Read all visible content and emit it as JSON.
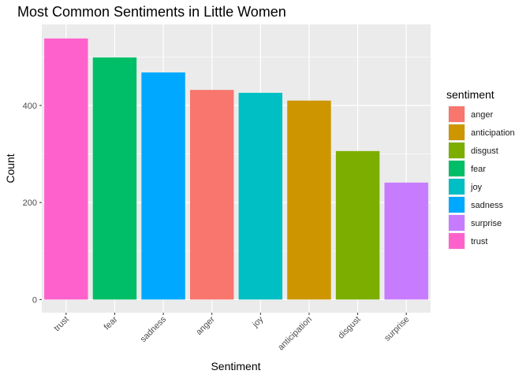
{
  "chart_data": {
    "type": "bar",
    "title": "Most Common Sentiments in Little Women",
    "xlabel": "Sentiment",
    "ylabel": "Count",
    "categories": [
      "trust",
      "fear",
      "sadness",
      "anger",
      "joy",
      "anticipation",
      "disgust",
      "surprise"
    ],
    "values": [
      538,
      499,
      468,
      432,
      426,
      410,
      306,
      241
    ],
    "colors": {
      "anger": "#F8766D",
      "anticipation": "#CD9600",
      "disgust": "#7CAE00",
      "fear": "#00BE67",
      "joy": "#00BFC4",
      "sadness": "#00A9FF",
      "surprise": "#C77CFF",
      "trust": "#FF61CC"
    },
    "yticks": [
      0,
      200,
      400
    ],
    "ylim": [
      -27,
      567
    ],
    "grid": true,
    "panel_background": "#EBEBEB",
    "legend": {
      "title": "sentiment",
      "position": "right",
      "entries": [
        "anger",
        "anticipation",
        "disgust",
        "fear",
        "joy",
        "sadness",
        "surprise",
        "trust"
      ]
    }
  }
}
